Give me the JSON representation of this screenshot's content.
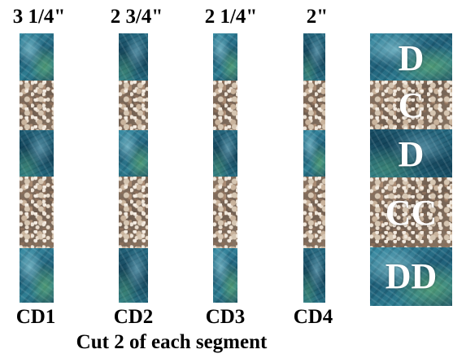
{
  "strips": [
    {
      "width_label": "3 1/4\"",
      "name": "CD1"
    },
    {
      "width_label": "2 3/4\"",
      "name": "CD2"
    },
    {
      "width_label": "2 1/4\"",
      "name": "CD3"
    },
    {
      "width_label": "2\"",
      "name": "CD4"
    }
  ],
  "assembled_letters": [
    "D",
    "C",
    "D",
    "CC",
    "DD"
  ],
  "caption": "Cut 2 of each segment",
  "colors": {
    "water": "#2f7f93",
    "pebble": "#8d7866",
    "text": "#000000",
    "letter": "#ffffff"
  }
}
